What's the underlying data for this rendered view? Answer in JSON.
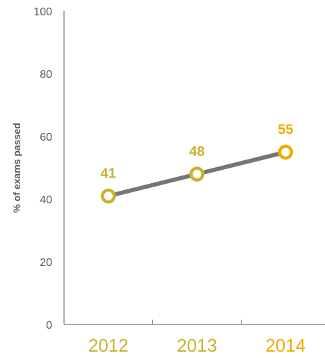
{
  "chart_data": {
    "type": "line",
    "categories": [
      "2012",
      "2013",
      "2014"
    ],
    "series": [
      {
        "values": [
          41,
          48,
          55
        ]
      }
    ],
    "data_labels": [
      "41",
      "48",
      "55"
    ],
    "ylabel": "% of exams passed",
    "ylim": [
      0,
      100
    ],
    "yticks": [
      "0",
      "20",
      "40",
      "60",
      "80",
      "100"
    ],
    "grid": false,
    "colors": {
      "line": "#767676",
      "axis": "#595959",
      "tick_text": "#595959",
      "points": [
        "#c9b22e",
        "#c9b22e",
        "#f0ac00"
      ],
      "labels": [
        "#c9b22e",
        "#c9b22e",
        "#f0ac00"
      ]
    }
  }
}
